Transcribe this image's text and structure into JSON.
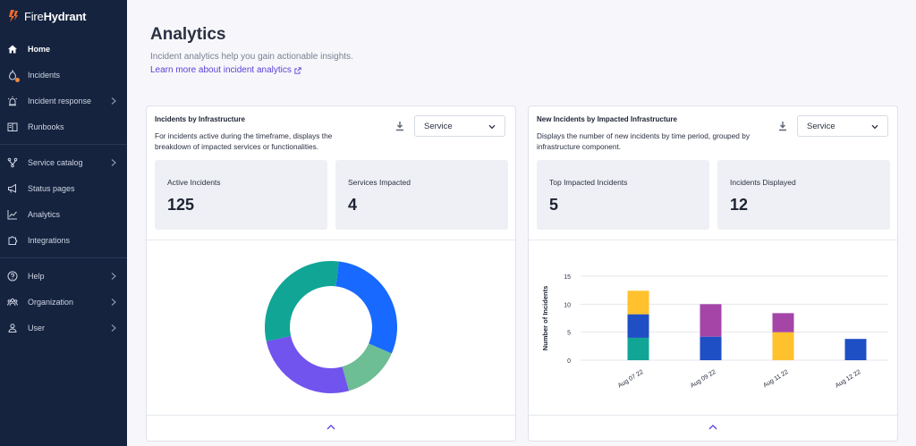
{
  "app": {
    "brand_light": "Fire",
    "brand_bold": "Hydrant"
  },
  "sidebar": {
    "items": [
      {
        "label": "Home"
      },
      {
        "label": "Incidents"
      },
      {
        "label": "Incident response"
      },
      {
        "label": "Runbooks"
      },
      {
        "label": "Service catalog"
      },
      {
        "label": "Status pages"
      },
      {
        "label": "Analytics"
      },
      {
        "label": "Integrations"
      },
      {
        "label": "Help"
      },
      {
        "label": "Organization"
      },
      {
        "label": "User"
      }
    ]
  },
  "page": {
    "title": "Analytics",
    "subtitle": "Incident analytics help you gain actionable insights.",
    "link": "Learn more about incident analytics"
  },
  "cards": [
    {
      "title": "Incidents by Infrastructure",
      "description": "For incidents active during the timeframe, displays the breakdown of impacted services or functionalities.",
      "select": "Service",
      "stats": [
        {
          "label": "Active Incidents",
          "value": "125"
        },
        {
          "label": "Services Impacted",
          "value": "4"
        }
      ]
    },
    {
      "title": "New Incidents by Impacted Infrastructure",
      "description": "Displays the number of new incidents by time period, grouped by infrastructure component.",
      "select": "Service",
      "stats": [
        {
          "label": "Top Impacted Incidents",
          "value": "5"
        },
        {
          "label": "Incidents Displayed",
          "value": "12"
        }
      ]
    }
  ],
  "colors": {
    "sidebar_bg": "#15233f",
    "accent": "#5b3fd6",
    "brand_orange": "#f26b2a"
  },
  "chart_data": [
    {
      "type": "pie",
      "donut": true,
      "values": [
        40,
        19,
        35,
        41
      ],
      "colors": [
        "#1769ff",
        "#6dbd95",
        "#7153ee",
        "#11a596"
      ]
    },
    {
      "type": "bar",
      "stacked": true,
      "categories": [
        "Aug 07 22",
        "Aug 09 22",
        "Aug 11 22",
        "Aug 12 22"
      ],
      "ylabel": "Number of Incidents",
      "ylim": [
        0,
        15
      ],
      "yticks": [
        0,
        5,
        10,
        15
      ],
      "series": [
        {
          "color": "#11a596",
          "values": [
            4,
            0,
            0,
            0
          ]
        },
        {
          "color": "#1e4fc4",
          "values": [
            4.2,
            4.2,
            0,
            3.8
          ]
        },
        {
          "color": "#ffc12e",
          "values": [
            4.2,
            0,
            5,
            0
          ]
        },
        {
          "color": "#a545a8",
          "values": [
            0,
            5.8,
            3.4,
            0
          ]
        }
      ]
    }
  ]
}
